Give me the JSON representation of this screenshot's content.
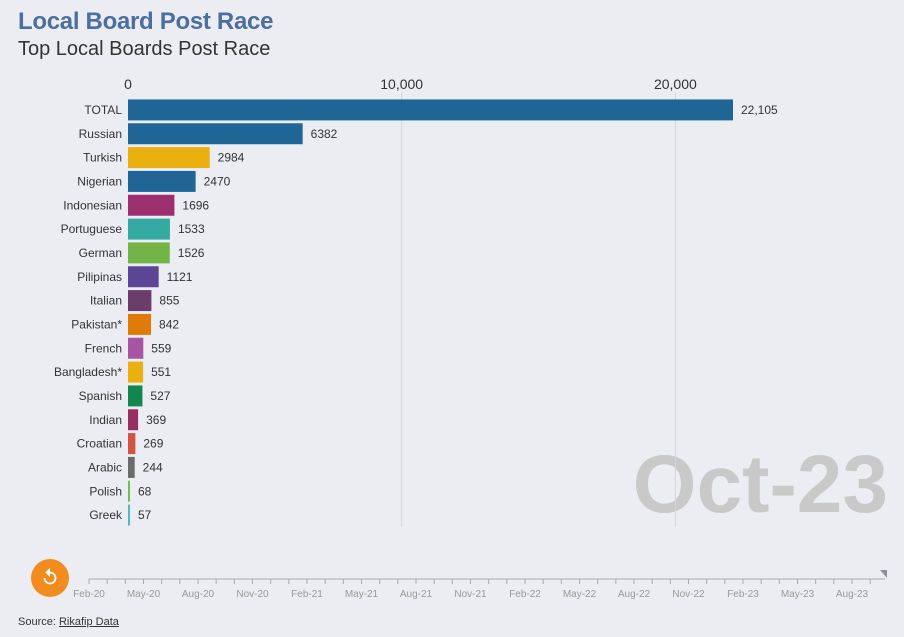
{
  "header": {
    "title": "Local Board Post Race",
    "subtitle": "Top Local Boards Post Race"
  },
  "chart_data": {
    "type": "bar",
    "orientation": "horizontal",
    "title": "Local Board Post Race",
    "subtitle": "Top Local Boards Post Race",
    "xlim": [
      0,
      22105
    ],
    "x_ticks": [
      0,
      10000,
      20000
    ],
    "x_tick_labels": [
      "0",
      "10,000",
      "20,000"
    ],
    "grid": true,
    "categories": [
      "TOTAL",
      "Russian",
      "Turkish",
      "Nigerian",
      "Indonesian",
      "Portuguese",
      "German",
      "Pilipinas",
      "Italian",
      "Pakistan*",
      "French",
      "Bangladesh*",
      "Spanish",
      "Indian",
      "Croatian",
      "Arabic",
      "Polish",
      "Greek"
    ],
    "values": [
      22105,
      6382,
      2984,
      2470,
      1696,
      1533,
      1526,
      1121,
      855,
      842,
      559,
      551,
      527,
      369,
      269,
      244,
      68,
      57
    ],
    "value_labels": [
      "22,105",
      "6382",
      "2984",
      "2470",
      "1696",
      "1533",
      "1526",
      "1121",
      "855",
      "842",
      "559",
      "551",
      "527",
      "369",
      "269",
      "244",
      "68",
      "57"
    ],
    "colors": [
      "#1f6595",
      "#1f6595",
      "#eab010",
      "#1f6595",
      "#9c306e",
      "#35aaa2",
      "#72b447",
      "#5b4594",
      "#6a3d6a",
      "#e07b0a",
      "#a654a4",
      "#eab010",
      "#13854e",
      "#963063",
      "#d35440",
      "#6b6b6b",
      "#6fbf4a",
      "#54b7c4"
    ],
    "date_label": "Oct-23",
    "timeline_labels": [
      "Feb-20",
      "May-20",
      "Aug-20",
      "Nov-20",
      "Feb-21",
      "May-21",
      "Aug-21",
      "Nov-21",
      "Feb-22",
      "May-22",
      "Aug-22",
      "Nov-22",
      "Feb-23",
      "May-23",
      "Aug-23"
    ],
    "timeline_position": 1.0
  },
  "controls": {
    "replay_icon": "replay-icon",
    "replay_color": "#f28c1e"
  },
  "footer": {
    "source_prefix": "Source: ",
    "source_link": "Rikafip Data"
  }
}
